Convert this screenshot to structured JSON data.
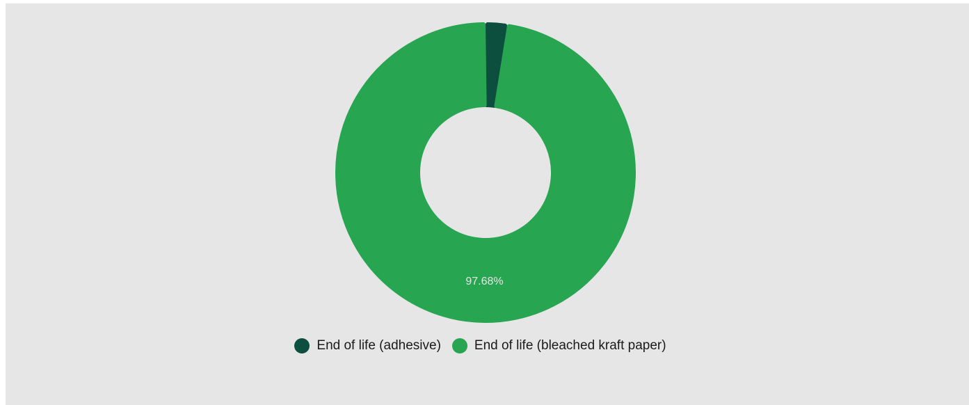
{
  "chart_data": {
    "type": "pie",
    "title": "",
    "categories": [
      "End of life (adhesive)",
      "End of life (bleached kraft paper)"
    ],
    "values": [
      2.32,
      97.68
    ],
    "data_labels": [
      "",
      "97.68%"
    ],
    "colors": [
      "#0c4f3e",
      "#27a550"
    ],
    "donut": true,
    "legend_position": "bottom"
  },
  "legend": {
    "items": [
      {
        "label": "End of life (adhesive)",
        "color": "#0c4f3e"
      },
      {
        "label": "End of life (bleached kraft paper)",
        "color": "#27a550"
      }
    ]
  },
  "background_color": "#e6e6e6"
}
